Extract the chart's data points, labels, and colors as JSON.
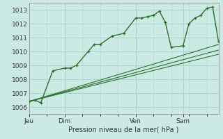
{
  "background_color": "#cceae4",
  "grid_color": "#aad4cc",
  "line_color": "#2d6e2d",
  "xlabel": "Pression niveau de la mer( hPa )",
  "ylim": [
    1005.5,
    1013.5
  ],
  "yticks": [
    1006,
    1007,
    1008,
    1009,
    1010,
    1011,
    1012,
    1013
  ],
  "day_labels": [
    "Jeu",
    "Dim",
    "Ven",
    "Sam"
  ],
  "day_positions": [
    0,
    3,
    9,
    13
  ],
  "xlim": [
    0,
    16
  ],
  "series1_x": [
    0,
    0.5,
    1,
    2,
    3,
    3.5,
    4,
    5,
    5.5,
    6,
    7,
    8,
    9,
    9.5,
    10,
    10.5,
    11,
    11.5,
    12,
    13,
    13.5,
    14,
    14.5,
    15,
    15.5,
    16
  ],
  "series1_y": [
    1006.4,
    1006.5,
    1006.3,
    1008.6,
    1008.8,
    1008.8,
    1009.0,
    1010.0,
    1010.5,
    1010.5,
    1011.1,
    1011.3,
    1012.4,
    1012.4,
    1012.5,
    1012.6,
    1012.9,
    1012.1,
    1010.3,
    1010.4,
    1012.0,
    1012.4,
    1012.6,
    1013.1,
    1013.2,
    1010.7
  ],
  "series2_x": [
    0,
    16
  ],
  "series2_y": [
    1006.4,
    1010.1
  ],
  "series3_x": [
    0,
    16
  ],
  "series3_y": [
    1006.4,
    1009.8
  ],
  "series4_x": [
    0,
    16
  ],
  "series4_y": [
    1006.4,
    1010.5
  ],
  "figsize": [
    3.2,
    2.0
  ],
  "dpi": 100
}
